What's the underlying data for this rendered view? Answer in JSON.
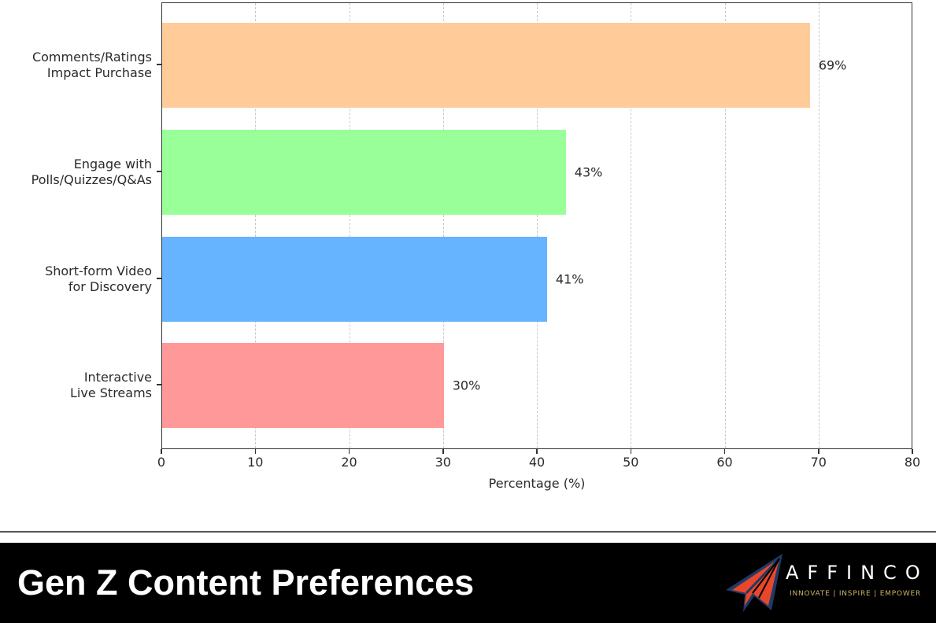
{
  "chart_data": {
    "type": "bar",
    "orientation": "horizontal",
    "title": "Gen Z Content Preferences",
    "xlabel": "Percentage (%)",
    "ylabel": "",
    "xlim": [
      0,
      80
    ],
    "x_ticks": [
      "0",
      "10",
      "20",
      "30",
      "40",
      "50",
      "60",
      "70",
      "80"
    ],
    "grid": "vertical dashed",
    "legend": "none",
    "categories": [
      "Comments/Ratings Impact Purchase",
      "Engage with Polls/Quizzes/Q&As",
      "Short-form Video for Discovery",
      "Interactive Live Streams"
    ],
    "values": [
      69,
      43,
      41,
      30
    ],
    "value_labels": [
      "69%",
      "43%",
      "41%",
      "30%"
    ],
    "colors": [
      "#ffcc99",
      "#99ff99",
      "#66b3ff",
      "#ff9999"
    ]
  },
  "y_labels": [
    {
      "line1": "Comments/Ratings",
      "line2": "Impact Purchase"
    },
    {
      "line1": "Engage with",
      "line2": "Polls/Quizzes/Q&As"
    },
    {
      "line1": "Short-form Video",
      "line2": "for Discovery"
    },
    {
      "line1": "Interactive",
      "line2": "Live Streams"
    }
  ],
  "footer": {
    "title": "Gen Z Content Preferences",
    "background": "#000000",
    "logo": {
      "name": "AFFINCO",
      "tagline": "INNOVATE | INSPIRE | EMPOWER",
      "icon": "paper-plane-icon",
      "icon_colors": {
        "fill": "#e8472b",
        "outline": "#1f3a64"
      }
    }
  }
}
